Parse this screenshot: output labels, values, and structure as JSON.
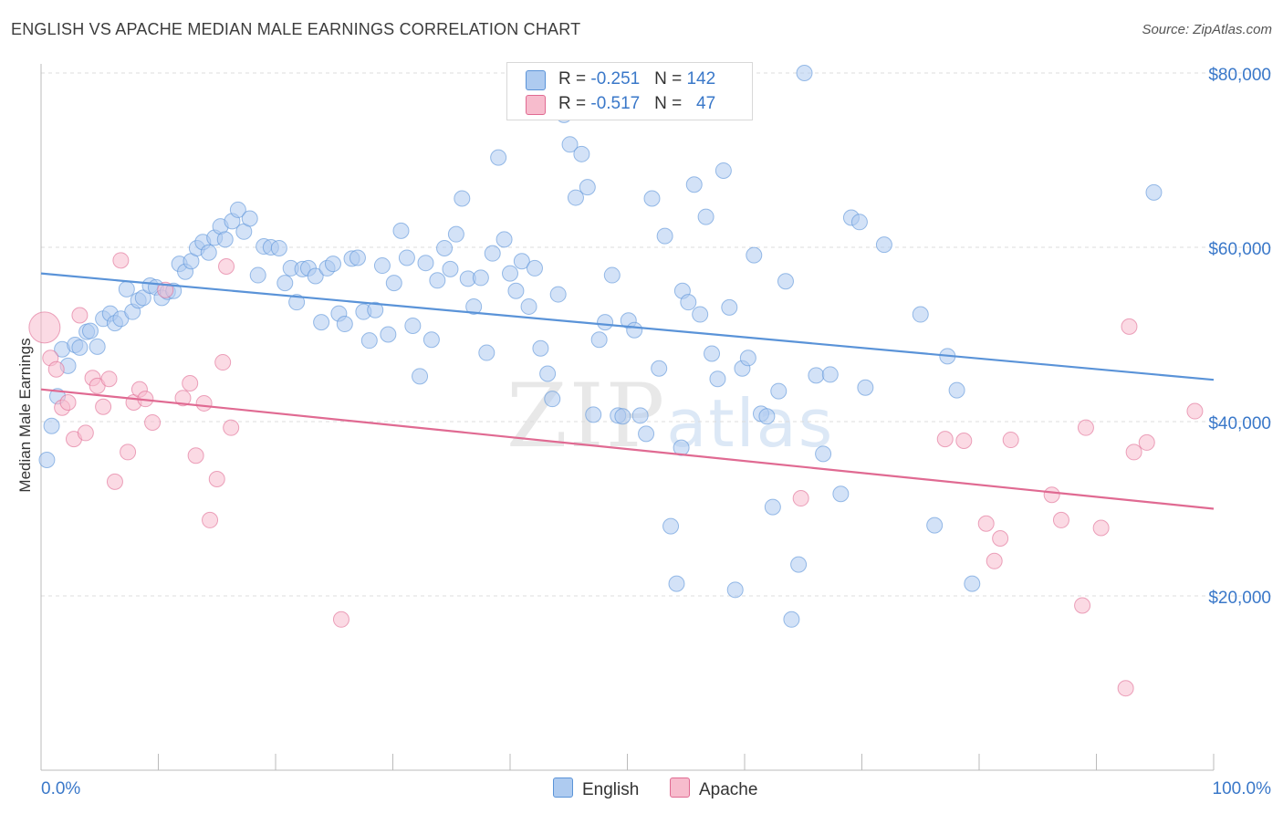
{
  "header": {
    "title": "ENGLISH VS APACHE MEDIAN MALE EARNINGS CORRELATION CHART",
    "source": "Source: ZipAtlas.com"
  },
  "watermark": {
    "zip": "ZIP",
    "atlas": "atlas"
  },
  "legend": {
    "rows": [
      {
        "r_label": "R = ",
        "r_value": "-0.251",
        "n_label": "N = ",
        "n_value": "142",
        "color": "#aecbf0"
      },
      {
        "r_label": "R = ",
        "r_value": "-0.517",
        "n_label": "N = ",
        "n_value": "47",
        "color": "#f7bccd"
      }
    ]
  },
  "bottom_legend": [
    {
      "label": "English",
      "color": "#aecbf0"
    },
    {
      "label": "Apache",
      "color": "#f7bccd"
    }
  ],
  "chart_data": {
    "type": "scatter",
    "title": "ENGLISH VS APACHE MEDIAN MALE EARNINGS CORRELATION CHART",
    "ylabel": "Median Male Earnings",
    "xlabel": "",
    "xlim": [
      0,
      100
    ],
    "ylim": [
      0,
      82000
    ],
    "x_tick_labels": [
      "0.0%",
      "100.0%"
    ],
    "y_ticks": [
      20000,
      40000,
      60000,
      80000
    ],
    "y_tick_labels": [
      "$20,000",
      "$40,000",
      "$60,000",
      "$80,000"
    ],
    "grid": "horizontal dashed",
    "legend_position": "top-center",
    "series": [
      {
        "name": "English",
        "color": "#5a93d8",
        "fill": "#aecbf0",
        "trend": {
          "x": [
            0,
            100
          ],
          "y": [
            57000,
            44800
          ]
        },
        "points": [
          [
            0.5,
            35600
          ],
          [
            0.9,
            39500
          ],
          [
            1.4,
            42900
          ],
          [
            1.8,
            48300
          ],
          [
            2.3,
            46400
          ],
          [
            2.9,
            48800
          ],
          [
            3.3,
            48500
          ],
          [
            3.9,
            50300
          ],
          [
            4.2,
            50400
          ],
          [
            4.8,
            48600
          ],
          [
            5.3,
            51800
          ],
          [
            5.9,
            52400
          ],
          [
            6.3,
            51300
          ],
          [
            6.8,
            51800
          ],
          [
            7.3,
            55200
          ],
          [
            7.8,
            52600
          ],
          [
            8.3,
            53900
          ],
          [
            8.7,
            54200
          ],
          [
            9.3,
            55600
          ],
          [
            9.8,
            55400
          ],
          [
            10.3,
            54200
          ],
          [
            10.8,
            54900
          ],
          [
            11.3,
            55000
          ],
          [
            11.8,
            58100
          ],
          [
            12.3,
            57200
          ],
          [
            12.8,
            58400
          ],
          [
            13.3,
            59900
          ],
          [
            13.8,
            60600
          ],
          [
            14.3,
            59400
          ],
          [
            14.8,
            61100
          ],
          [
            15.3,
            62400
          ],
          [
            15.7,
            60900
          ],
          [
            16.3,
            63000
          ],
          [
            16.8,
            64300
          ],
          [
            17.3,
            61800
          ],
          [
            17.8,
            63300
          ],
          [
            18.5,
            56800
          ],
          [
            19.0,
            60100
          ],
          [
            19.6,
            60000
          ],
          [
            20.3,
            59900
          ],
          [
            20.8,
            55900
          ],
          [
            21.3,
            57600
          ],
          [
            21.8,
            53700
          ],
          [
            22.3,
            57500
          ],
          [
            22.8,
            57600
          ],
          [
            23.4,
            56700
          ],
          [
            23.9,
            51400
          ],
          [
            24.4,
            57600
          ],
          [
            24.9,
            58100
          ],
          [
            25.4,
            52400
          ],
          [
            25.9,
            51200
          ],
          [
            26.5,
            58700
          ],
          [
            27.0,
            58800
          ],
          [
            27.5,
            52600
          ],
          [
            28.0,
            49300
          ],
          [
            28.5,
            52800
          ],
          [
            29.1,
            57900
          ],
          [
            29.6,
            50000
          ],
          [
            30.1,
            55900
          ],
          [
            30.7,
            61900
          ],
          [
            31.2,
            58800
          ],
          [
            31.7,
            51000
          ],
          [
            32.3,
            45200
          ],
          [
            32.8,
            58200
          ],
          [
            33.3,
            49400
          ],
          [
            33.8,
            56200
          ],
          [
            34.4,
            59900
          ],
          [
            34.9,
            57500
          ],
          [
            35.4,
            61500
          ],
          [
            35.9,
            65600
          ],
          [
            36.4,
            56400
          ],
          [
            36.9,
            53200
          ],
          [
            37.5,
            56500
          ],
          [
            38.0,
            47900
          ],
          [
            38.5,
            59300
          ],
          [
            39.0,
            70300
          ],
          [
            39.5,
            60900
          ],
          [
            40.0,
            57000
          ],
          [
            40.5,
            55000
          ],
          [
            41.0,
            58400
          ],
          [
            41.6,
            53200
          ],
          [
            42.1,
            57600
          ],
          [
            42.6,
            48400
          ],
          [
            43.2,
            45500
          ],
          [
            43.6,
            42600
          ],
          [
            44.1,
            54600
          ],
          [
            44.6,
            75200
          ],
          [
            45.1,
            71800
          ],
          [
            45.6,
            65700
          ],
          [
            46.1,
            70700
          ],
          [
            46.6,
            66900
          ],
          [
            47.1,
            40800
          ],
          [
            47.6,
            49400
          ],
          [
            48.1,
            51400
          ],
          [
            48.7,
            56800
          ],
          [
            49.2,
            40700
          ],
          [
            49.6,
            40600
          ],
          [
            50.1,
            51600
          ],
          [
            50.6,
            50500
          ],
          [
            51.1,
            40700
          ],
          [
            51.6,
            38600
          ],
          [
            52.1,
            65600
          ],
          [
            52.7,
            46100
          ],
          [
            53.2,
            61300
          ],
          [
            53.7,
            28000
          ],
          [
            54.2,
            21400
          ],
          [
            54.7,
            55000
          ],
          [
            55.2,
            53700
          ],
          [
            55.7,
            67200
          ],
          [
            56.2,
            52300
          ],
          [
            56.7,
            63500
          ],
          [
            57.2,
            47800
          ],
          [
            57.7,
            44900
          ],
          [
            58.2,
            68800
          ],
          [
            58.7,
            53100
          ],
          [
            59.2,
            20700
          ],
          [
            59.8,
            46100
          ],
          [
            60.3,
            47300
          ],
          [
            60.8,
            59100
          ],
          [
            61.4,
            40900
          ],
          [
            61.9,
            40600
          ],
          [
            62.4,
            30200
          ],
          [
            62.9,
            43500
          ],
          [
            63.5,
            56100
          ],
          [
            64.0,
            17300
          ],
          [
            64.6,
            23600
          ],
          [
            65.1,
            80000
          ],
          [
            66.1,
            45300
          ],
          [
            66.7,
            36300
          ],
          [
            67.3,
            45400
          ],
          [
            68.2,
            31700
          ],
          [
            69.1,
            63400
          ],
          [
            69.8,
            62900
          ],
          [
            70.3,
            43900
          ],
          [
            71.9,
            60300
          ],
          [
            75.0,
            52300
          ],
          [
            76.2,
            28100
          ],
          [
            77.3,
            47500
          ],
          [
            78.1,
            43600
          ],
          [
            79.4,
            21400
          ],
          [
            94.9,
            66300
          ],
          [
            54.6,
            37000
          ]
        ]
      },
      {
        "name": "Apache",
        "color": "#e06a92",
        "fill": "#f7bccd",
        "trend": {
          "x": [
            0,
            100
          ],
          "y": [
            43700,
            30000
          ]
        },
        "points": [
          [
            0.3,
            50800
          ],
          [
            0.8,
            47300
          ],
          [
            1.3,
            46000
          ],
          [
            1.8,
            41600
          ],
          [
            2.3,
            42200
          ],
          [
            2.8,
            38000
          ],
          [
            3.3,
            52200
          ],
          [
            3.8,
            38700
          ],
          [
            4.4,
            45000
          ],
          [
            4.8,
            44100
          ],
          [
            5.3,
            41700
          ],
          [
            5.8,
            44900
          ],
          [
            6.3,
            33100
          ],
          [
            6.8,
            58500
          ],
          [
            7.4,
            36500
          ],
          [
            7.9,
            42200
          ],
          [
            8.4,
            43700
          ],
          [
            8.9,
            42600
          ],
          [
            9.5,
            39900
          ],
          [
            10.6,
            55100
          ],
          [
            12.1,
            42700
          ],
          [
            12.7,
            44400
          ],
          [
            13.2,
            36100
          ],
          [
            13.9,
            42100
          ],
          [
            14.4,
            28700
          ],
          [
            15.0,
            33400
          ],
          [
            15.5,
            46800
          ],
          [
            15.8,
            57800
          ],
          [
            16.2,
            39300
          ],
          [
            25.6,
            17300
          ],
          [
            64.8,
            31200
          ],
          [
            77.1,
            38000
          ],
          [
            78.7,
            37800
          ],
          [
            80.6,
            28300
          ],
          [
            81.3,
            24000
          ],
          [
            81.8,
            26600
          ],
          [
            82.7,
            37900
          ],
          [
            86.2,
            31600
          ],
          [
            87.0,
            28700
          ],
          [
            88.8,
            18900
          ],
          [
            89.1,
            39300
          ],
          [
            90.4,
            27800
          ],
          [
            92.5,
            9400
          ],
          [
            92.8,
            50900
          ],
          [
            93.2,
            36500
          ],
          [
            94.3,
            37600
          ],
          [
            98.4,
            41200
          ]
        ]
      }
    ]
  }
}
